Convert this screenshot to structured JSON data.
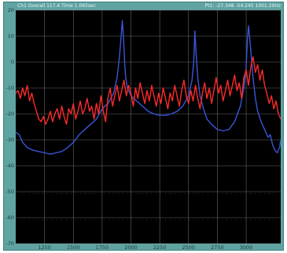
{
  "header": {
    "left_text": "Ch1 Overall 117.4  Time 1.065sec",
    "right_text": "Pt1: -27.348    -54.245    1001.29Hz"
  },
  "colors": {
    "frame": "#5fa3a2",
    "plot_bg": "#000000",
    "grid": "#8a8a8a",
    "series_blue": "#3a56d8",
    "series_red": "#ff2a2a"
  },
  "chart_data": {
    "type": "line",
    "title": "",
    "xlabel": "",
    "ylabel": "",
    "xlim": [
      1000,
      3300
    ],
    "ylim": [
      -70,
      20
    ],
    "x_ticks": [
      1250,
      1500,
      1750,
      2000,
      2250,
      2500,
      2750,
      3000
    ],
    "x_tick_labels": [
      "1250",
      "1500",
      "1750",
      "2000",
      "2250",
      "2500",
      "2750",
      "3000"
    ],
    "y_ticks": [
      20,
      10,
      0,
      -10,
      -20,
      -30,
      -40,
      -50,
      -60,
      -70
    ],
    "y_tick_labels": [
      "20",
      "10",
      "0",
      "-10",
      "-20",
      "-30",
      "-40",
      "-50",
      "-60",
      "-70"
    ],
    "grid": true,
    "series": [
      {
        "color": "#3a56d8",
        "x": [
          1000,
          1030,
          1060,
          1100,
          1150,
          1200,
          1250,
          1300,
          1350,
          1400,
          1450,
          1500,
          1550,
          1600,
          1650,
          1700,
          1750,
          1800,
          1850,
          1880,
          1900,
          1915,
          1925,
          1935,
          1945,
          1955,
          1970,
          2000,
          2050,
          2100,
          2150,
          2200,
          2250,
          2300,
          2350,
          2400,
          2450,
          2500,
          2530,
          2545,
          2555,
          2565,
          2580,
          2600,
          2630,
          2660,
          2700,
          2750,
          2800,
          2850,
          2900,
          2950,
          2980,
          3000,
          3010,
          3020,
          3030,
          3045,
          3060,
          3080,
          3100,
          3130,
          3160,
          3190,
          3210,
          3230,
          3250,
          3270,
          3290,
          3300
        ],
        "y": [
          -27,
          -28,
          -31,
          -33,
          -34,
          -34.5,
          -35,
          -35.5,
          -35,
          -34.5,
          -33,
          -31,
          -28,
          -26,
          -24,
          -22,
          -18,
          -16,
          -12,
          -6,
          2,
          10,
          16,
          10,
          0,
          -6,
          -10,
          -13,
          -15,
          -17,
          -19,
          -20,
          -20.5,
          -20.5,
          -20,
          -19,
          -17,
          -13,
          -7,
          0,
          12,
          4,
          -6,
          -13,
          -18,
          -22,
          -24,
          -26,
          -26.5,
          -26,
          -23,
          -17,
          -10,
          -2,
          8,
          14,
          10,
          2,
          -6,
          -14,
          -19,
          -23,
          -26,
          -29,
          -28,
          -32,
          -34,
          -35,
          -33,
          -30
        ]
      },
      {
        "color": "#ff2a2a",
        "x": [
          1000,
          1020,
          1040,
          1060,
          1080,
          1100,
          1120,
          1140,
          1160,
          1180,
          1200,
          1220,
          1240,
          1260,
          1280,
          1300,
          1320,
          1340,
          1360,
          1380,
          1400,
          1420,
          1440,
          1460,
          1480,
          1500,
          1520,
          1540,
          1560,
          1580,
          1600,
          1620,
          1640,
          1660,
          1680,
          1700,
          1720,
          1740,
          1760,
          1780,
          1800,
          1820,
          1840,
          1860,
          1880,
          1900,
          1920,
          1940,
          1960,
          1980,
          2000,
          2020,
          2040,
          2060,
          2080,
          2100,
          2120,
          2140,
          2160,
          2180,
          2200,
          2220,
          2240,
          2260,
          2280,
          2300,
          2320,
          2340,
          2360,
          2380,
          2400,
          2420,
          2440,
          2460,
          2480,
          2500,
          2520,
          2540,
          2560,
          2580,
          2600,
          2620,
          2640,
          2660,
          2680,
          2700,
          2720,
          2740,
          2760,
          2780,
          2800,
          2820,
          2840,
          2860,
          2880,
          2900,
          2920,
          2940,
          2960,
          2980,
          3000,
          3020,
          3040,
          3060,
          3080,
          3100,
          3120,
          3140,
          3160,
          3180,
          3200,
          3220,
          3240,
          3260,
          3280,
          3300
        ],
        "y": [
          -12,
          -11,
          -14,
          -10,
          -13,
          -9,
          -15,
          -12,
          -16,
          -19,
          -22,
          -23,
          -21,
          -24,
          -22,
          -19,
          -23,
          -20,
          -18,
          -22,
          -17,
          -21,
          -24,
          -18,
          -20,
          -16,
          -22,
          -19,
          -15,
          -20,
          -18,
          -14,
          -19,
          -17,
          -22,
          -16,
          -20,
          -13,
          -19,
          -23,
          -14,
          -10,
          -17,
          -13,
          -9,
          -15,
          -11,
          -7,
          -13,
          -9,
          -12,
          -17,
          -10,
          -14,
          -8,
          -12,
          -16,
          -11,
          -15,
          -9,
          -13,
          -17,
          -12,
          -16,
          -10,
          -14,
          -18,
          -12,
          -15,
          -9,
          -13,
          -17,
          -11,
          -7,
          -13,
          -16,
          -11,
          -15,
          -9,
          -14,
          -18,
          -12,
          -8,
          -14,
          -10,
          -16,
          -11,
          -6,
          -12,
          -9,
          -15,
          -11,
          -7,
          -13,
          -9,
          -5,
          -11,
          -8,
          -14,
          -6,
          -3,
          -9,
          -2,
          2,
          -4,
          -1,
          -7,
          -3,
          -9,
          -12,
          -16,
          -13,
          -18,
          -15,
          -20,
          -22
        ]
      }
    ]
  }
}
